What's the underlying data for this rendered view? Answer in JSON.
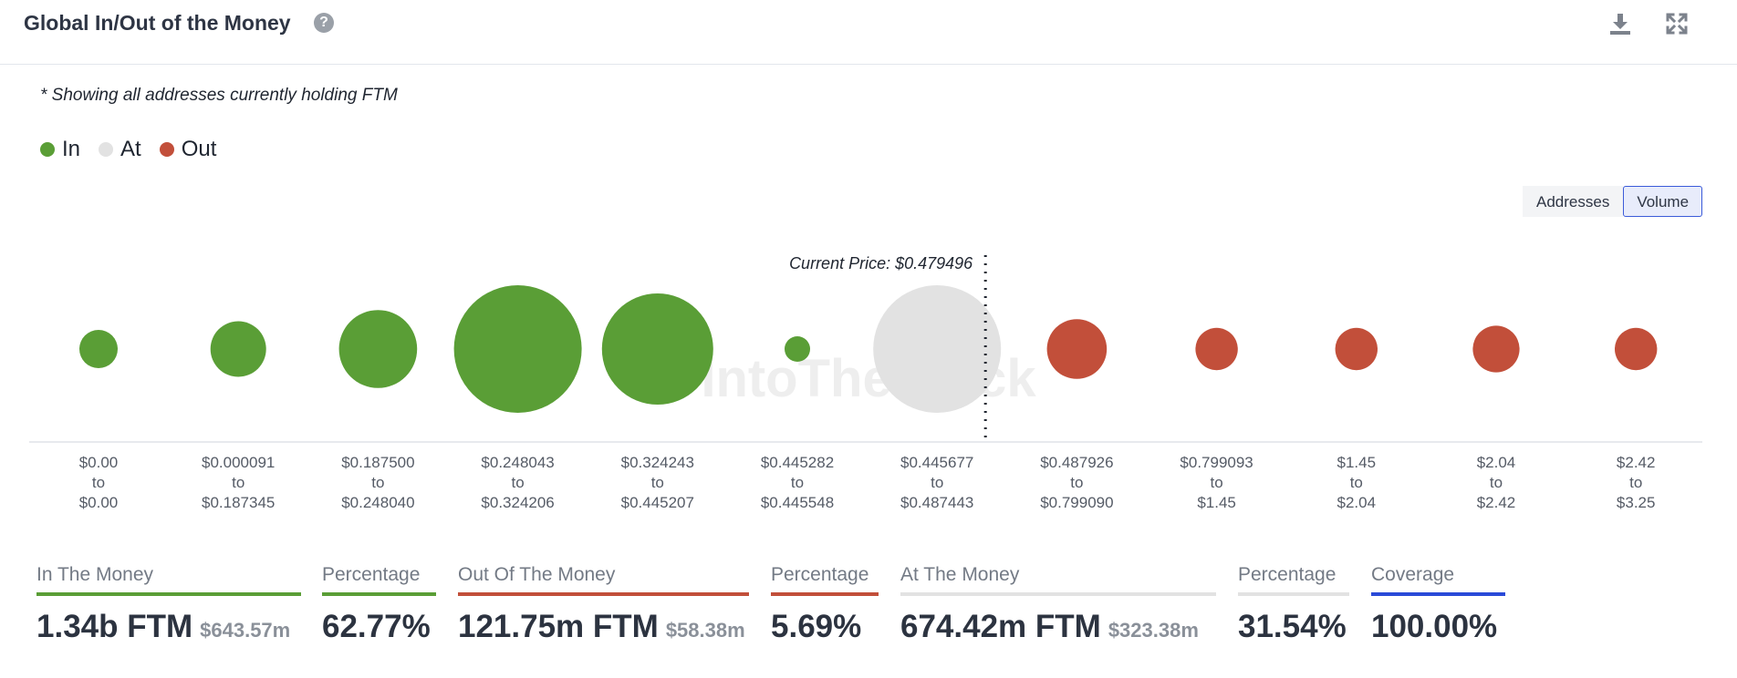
{
  "header": {
    "title": "Global In/Out of the Money",
    "help_icon": "?",
    "download_icon": "download-icon",
    "fullscreen_icon": "fullscreen-icon"
  },
  "note": "* Showing all addresses currently holding FTM",
  "legend": [
    {
      "label": "In",
      "color": "#5a9e36"
    },
    {
      "label": "At",
      "color": "#e2e2e2"
    },
    {
      "label": "Out",
      "color": "#c24f3a"
    }
  ],
  "toggle": {
    "addresses": "Addresses",
    "volume": "Volume",
    "active": "Volume"
  },
  "watermark": "IntoTheBlock",
  "chart_data": {
    "type": "bubble",
    "current_price_label": "Current Price: $0.479496",
    "current_price_position": "between bucket 7 and bucket 8",
    "x_labels": [
      [
        "$0.00",
        "to",
        "$0.00"
      ],
      [
        "$0.000091",
        "to",
        "$0.187345"
      ],
      [
        "$0.187500",
        "to",
        "$0.248040"
      ],
      [
        "$0.248043",
        "to",
        "$0.324206"
      ],
      [
        "$0.324243",
        "to",
        "$0.445207"
      ],
      [
        "$0.445282",
        "to",
        "$0.445548"
      ],
      [
        "$0.445677",
        "to",
        "$0.487443"
      ],
      [
        "$0.487926",
        "to",
        "$0.799090"
      ],
      [
        "$0.799093",
        "to",
        "$1.45"
      ],
      [
        "$1.45",
        "to",
        "$2.04"
      ],
      [
        "$2.04",
        "to",
        "$2.42"
      ],
      [
        "$2.42",
        "to",
        "$3.25"
      ]
    ],
    "status": [
      "in",
      "in",
      "in",
      "in",
      "in",
      "in",
      "at",
      "out",
      "out",
      "out",
      "out",
      "out"
    ],
    "relative_volume": [
      0.027,
      0.057,
      0.112,
      0.3,
      0.228,
      0.012,
      0.3,
      0.066,
      0.033,
      0.033,
      0.04,
      0.033
    ],
    "colors": {
      "in": "#5a9e36",
      "at": "#e2e2e2",
      "out": "#c24f3a"
    }
  },
  "stats": [
    {
      "label": "In The Money",
      "value": "1.34b FTM",
      "sub": "$643.57m",
      "color": "#5a9e36"
    },
    {
      "label": "Percentage",
      "value": "62.77%",
      "sub": "",
      "color": "#5a9e36"
    },
    {
      "label": "Out Of The Money",
      "value": "121.75m FTM",
      "sub": "$58.38m",
      "color": "#c24f3a"
    },
    {
      "label": "Percentage",
      "value": "5.69%",
      "sub": "",
      "color": "#c24f3a"
    },
    {
      "label": "At The Money",
      "value": "674.42m FTM",
      "sub": "$323.38m",
      "color": "#e2e2e2"
    },
    {
      "label": "Percentage",
      "value": "31.54%",
      "sub": "",
      "color": "#e2e2e2"
    },
    {
      "label": "Coverage",
      "value": "100.00%",
      "sub": "",
      "color": "#2a4ad8"
    }
  ]
}
